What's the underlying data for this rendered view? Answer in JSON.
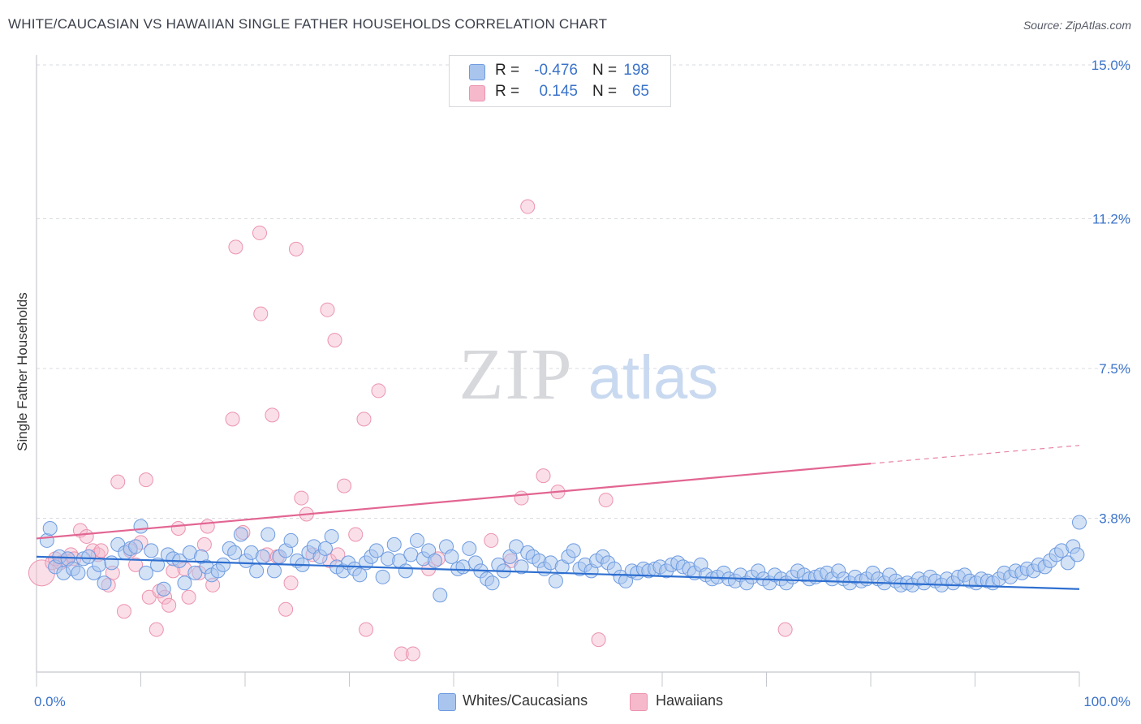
{
  "header": {
    "title": "WHITE/CAUCASIAN VS HAWAIIAN SINGLE FATHER HOUSEHOLDS CORRELATION CHART",
    "source": "Source: ZipAtlas.com"
  },
  "watermark": {
    "zip": "ZIP",
    "atlas": "atlas"
  },
  "legend": {
    "rows": [
      {
        "r_label": "R =",
        "r_value": "-0.476",
        "n_label": "N =",
        "n_value": "198"
      },
      {
        "r_label": "R =",
        "r_value": "0.145",
        "n_label": "N =",
        "n_value": "65"
      }
    ]
  },
  "bottom_legend": {
    "items": [
      {
        "label": "Whites/Caucasians"
      },
      {
        "label": "Hawaiians"
      }
    ]
  },
  "colors": {
    "blue_fill": "#a9c5ee",
    "blue_stroke": "#6d9be0",
    "blue_line": "#2e6fd0",
    "pink_fill": "#f5b9cb",
    "pink_stroke": "#ec93ae",
    "pink_line": "#e26592",
    "axis_text": "#3b73c9",
    "grid": "#d9dbe0"
  },
  "chart_data": {
    "type": "scatter",
    "title": "WHITE/CAUCASIAN VS HAWAIIAN SINGLE FATHER HOUSEHOLDS CORRELATION CHART",
    "xlabel": "",
    "ylabel": "Single Father Households",
    "xlim": [
      0,
      100
    ],
    "ylim": [
      0,
      15.0
    ],
    "x_tick_labels": [
      "0.0%",
      "100.0%"
    ],
    "y_ticks": [
      3.8,
      7.5,
      11.2,
      15.0
    ],
    "y_tick_labels": [
      "3.8%",
      "7.5%",
      "11.2%",
      "15.0%"
    ],
    "grid": true,
    "legend_position": "top-center",
    "series": [
      {
        "name": "Whites/Caucasians",
        "trend": {
          "x": [
            0,
            100
          ],
          "y": [
            2.85,
            2.05
          ]
        },
        "points": [
          [
            1,
            3.25
          ],
          [
            1.3,
            3.55
          ],
          [
            1.8,
            2.6
          ],
          [
            2.2,
            2.85
          ],
          [
            2.6,
            2.45
          ],
          [
            3,
            2.8
          ],
          [
            3.5,
            2.55
          ],
          [
            4,
            2.45
          ],
          [
            4.5,
            2.8
          ],
          [
            5,
            2.85
          ],
          [
            5.5,
            2.45
          ],
          [
            6,
            2.65
          ],
          [
            6.5,
            2.2
          ],
          [
            7.2,
            2.7
          ],
          [
            7.8,
            3.15
          ],
          [
            8.5,
            2.95
          ],
          [
            9,
            3.05
          ],
          [
            9.5,
            3.1
          ],
          [
            10,
            3.6
          ],
          [
            10.5,
            2.45
          ],
          [
            11,
            3.0
          ],
          [
            11.6,
            2.65
          ],
          [
            12.2,
            2.05
          ],
          [
            12.6,
            2.9
          ],
          [
            13.1,
            2.8
          ],
          [
            13.7,
            2.75
          ],
          [
            14.2,
            2.2
          ],
          [
            14.7,
            2.95
          ],
          [
            15.2,
            2.45
          ],
          [
            15.8,
            2.85
          ],
          [
            16.3,
            2.6
          ],
          [
            16.8,
            2.4
          ],
          [
            17.4,
            2.5
          ],
          [
            17.9,
            2.65
          ],
          [
            18.5,
            3.05
          ],
          [
            19,
            2.95
          ],
          [
            19.6,
            3.4
          ],
          [
            20.1,
            2.75
          ],
          [
            20.6,
            2.95
          ],
          [
            21.1,
            2.5
          ],
          [
            21.7,
            2.85
          ],
          [
            22.2,
            3.4
          ],
          [
            22.8,
            2.5
          ],
          [
            23.3,
            2.85
          ],
          [
            23.9,
            3.0
          ],
          [
            24.4,
            3.25
          ],
          [
            25,
            2.75
          ],
          [
            25.5,
            2.65
          ],
          [
            26.1,
            2.95
          ],
          [
            26.6,
            3.1
          ],
          [
            27.2,
            2.85
          ],
          [
            27.7,
            3.05
          ],
          [
            28.3,
            3.35
          ],
          [
            28.8,
            2.6
          ],
          [
            29.4,
            2.5
          ],
          [
            29.9,
            2.7
          ],
          [
            30.5,
            2.55
          ],
          [
            31,
            2.4
          ],
          [
            31.6,
            2.7
          ],
          [
            32.1,
            2.85
          ],
          [
            32.6,
            3.0
          ],
          [
            33.2,
            2.35
          ],
          [
            33.7,
            2.8
          ],
          [
            34.3,
            3.15
          ],
          [
            34.8,
            2.75
          ],
          [
            35.4,
            2.5
          ],
          [
            35.9,
            2.9
          ],
          [
            36.5,
            3.25
          ],
          [
            37.1,
            2.8
          ],
          [
            37.6,
            3.0
          ],
          [
            38.2,
            2.75
          ],
          [
            38.7,
            1.9
          ],
          [
            39.3,
            3.1
          ],
          [
            39.8,
            2.85
          ],
          [
            40.4,
            2.55
          ],
          [
            40.9,
            2.6
          ],
          [
            41.5,
            3.05
          ],
          [
            42.1,
            2.7
          ],
          [
            42.6,
            2.5
          ],
          [
            43.2,
            2.3
          ],
          [
            43.7,
            2.2
          ],
          [
            44.3,
            2.65
          ],
          [
            44.8,
            2.5
          ],
          [
            45.4,
            2.85
          ],
          [
            46,
            3.1
          ],
          [
            46.5,
            2.6
          ],
          [
            47.1,
            2.95
          ],
          [
            47.6,
            2.85
          ],
          [
            48.2,
            2.75
          ],
          [
            48.7,
            2.55
          ],
          [
            49.3,
            2.7
          ],
          [
            49.8,
            2.25
          ],
          [
            50.4,
            2.6
          ],
          [
            51,
            2.85
          ],
          [
            51.5,
            3.0
          ],
          [
            52.1,
            2.55
          ],
          [
            52.6,
            2.65
          ],
          [
            53.2,
            2.5
          ],
          [
            53.7,
            2.75
          ],
          [
            54.3,
            2.85
          ],
          [
            54.8,
            2.7
          ],
          [
            55.4,
            2.55
          ],
          [
            56,
            2.35
          ],
          [
            56.5,
            2.25
          ],
          [
            57.1,
            2.5
          ],
          [
            57.6,
            2.45
          ],
          [
            58.2,
            2.55
          ],
          [
            58.7,
            2.5
          ],
          [
            59.3,
            2.55
          ],
          [
            59.8,
            2.6
          ],
          [
            60.4,
            2.5
          ],
          [
            60.9,
            2.65
          ],
          [
            61.5,
            2.7
          ],
          [
            62,
            2.6
          ],
          [
            62.6,
            2.55
          ],
          [
            63.1,
            2.45
          ],
          [
            63.7,
            2.65
          ],
          [
            64.2,
            2.4
          ],
          [
            64.8,
            2.3
          ],
          [
            65.3,
            2.35
          ],
          [
            65.9,
            2.45
          ],
          [
            66.4,
            2.3
          ],
          [
            67,
            2.25
          ],
          [
            67.5,
            2.4
          ],
          [
            68.1,
            2.2
          ],
          [
            68.6,
            2.35
          ],
          [
            69.2,
            2.5
          ],
          [
            69.7,
            2.3
          ],
          [
            70.3,
            2.2
          ],
          [
            70.8,
            2.4
          ],
          [
            71.4,
            2.3
          ],
          [
            71.9,
            2.2
          ],
          [
            72.5,
            2.35
          ],
          [
            73,
            2.5
          ],
          [
            73.6,
            2.4
          ],
          [
            74.1,
            2.3
          ],
          [
            74.7,
            2.35
          ],
          [
            75.2,
            2.4
          ],
          [
            75.8,
            2.45
          ],
          [
            76.3,
            2.3
          ],
          [
            76.9,
            2.5
          ],
          [
            77.4,
            2.3
          ],
          [
            78,
            2.2
          ],
          [
            78.5,
            2.35
          ],
          [
            79.1,
            2.25
          ],
          [
            79.6,
            2.3
          ],
          [
            80.2,
            2.45
          ],
          [
            80.7,
            2.3
          ],
          [
            81.3,
            2.2
          ],
          [
            81.8,
            2.4
          ],
          [
            82.4,
            2.25
          ],
          [
            82.9,
            2.15
          ],
          [
            83.5,
            2.2
          ],
          [
            84,
            2.15
          ],
          [
            84.6,
            2.3
          ],
          [
            85.1,
            2.2
          ],
          [
            85.7,
            2.35
          ],
          [
            86.2,
            2.25
          ],
          [
            86.8,
            2.15
          ],
          [
            87.3,
            2.3
          ],
          [
            87.9,
            2.2
          ],
          [
            88.4,
            2.35
          ],
          [
            89,
            2.4
          ],
          [
            89.5,
            2.25
          ],
          [
            90.1,
            2.2
          ],
          [
            90.6,
            2.3
          ],
          [
            91.2,
            2.25
          ],
          [
            91.7,
            2.2
          ],
          [
            92.3,
            2.3
          ],
          [
            92.8,
            2.45
          ],
          [
            93.4,
            2.35
          ],
          [
            93.9,
            2.5
          ],
          [
            94.5,
            2.45
          ],
          [
            95,
            2.55
          ],
          [
            95.6,
            2.5
          ],
          [
            96.1,
            2.65
          ],
          [
            96.7,
            2.6
          ],
          [
            97.2,
            2.75
          ],
          [
            97.8,
            2.9
          ],
          [
            98.3,
            3.0
          ],
          [
            98.9,
            2.7
          ],
          [
            99.4,
            3.1
          ],
          [
            99.8,
            2.9
          ],
          [
            100,
            3.7
          ]
        ]
      },
      {
        "name": "Hawaiians",
        "trend": {
          "x": [
            0,
            80
          ],
          "y": [
            3.3,
            5.15
          ]
        },
        "trend_dashed": {
          "x": [
            80,
            100
          ],
          "y": [
            5.15,
            5.6
          ]
        },
        "points": [
          [
            0.5,
            2.45
          ],
          [
            1.5,
            2.7
          ],
          [
            1.8,
            2.8
          ],
          [
            2.3,
            2.7
          ],
          [
            2.8,
            2.75
          ],
          [
            3.3,
            2.9
          ],
          [
            3.6,
            2.8
          ],
          [
            4.2,
            3.5
          ],
          [
            4.8,
            3.35
          ],
          [
            5.4,
            3.0
          ],
          [
            5.9,
            2.9
          ],
          [
            6.2,
            3.0
          ],
          [
            6.9,
            2.15
          ],
          [
            7.3,
            2.45
          ],
          [
            7.8,
            4.7
          ],
          [
            8.4,
            1.5
          ],
          [
            9,
            3.0
          ],
          [
            9.5,
            2.65
          ],
          [
            10,
            3.2
          ],
          [
            10.5,
            4.75
          ],
          [
            10.8,
            1.85
          ],
          [
            11.5,
            1.05
          ],
          [
            11.8,
            2.0
          ],
          [
            12.3,
            1.85
          ],
          [
            12.7,
            1.65
          ],
          [
            13.1,
            2.5
          ],
          [
            13.6,
            3.55
          ],
          [
            14.2,
            2.55
          ],
          [
            14.6,
            1.85
          ],
          [
            15.6,
            2.45
          ],
          [
            16.1,
            3.15
          ],
          [
            16.4,
            3.6
          ],
          [
            16.9,
            2.15
          ],
          [
            18.8,
            6.25
          ],
          [
            19.1,
            10.5
          ],
          [
            19.8,
            3.45
          ],
          [
            21.4,
            10.85
          ],
          [
            21.5,
            8.85
          ],
          [
            22.1,
            2.9
          ],
          [
            22.6,
            6.35
          ],
          [
            23.1,
            2.85
          ],
          [
            23.9,
            1.55
          ],
          [
            24.4,
            2.2
          ],
          [
            24.9,
            10.45
          ],
          [
            25.4,
            4.3
          ],
          [
            25.9,
            3.9
          ],
          [
            26.5,
            2.9
          ],
          [
            27.9,
            8.95
          ],
          [
            28.1,
            2.75
          ],
          [
            28.6,
            8.2
          ],
          [
            28.9,
            2.9
          ],
          [
            29.5,
            4.6
          ],
          [
            30.6,
            3.4
          ],
          [
            31.4,
            6.25
          ],
          [
            31.6,
            1.05
          ],
          [
            32.8,
            6.95
          ],
          [
            35,
            0.45
          ],
          [
            36.1,
            0.45
          ],
          [
            37.6,
            2.55
          ],
          [
            38.5,
            2.8
          ],
          [
            43.6,
            3.25
          ],
          [
            45.5,
            2.75
          ],
          [
            46.5,
            4.3
          ],
          [
            47.1,
            11.5
          ],
          [
            48.6,
            4.85
          ],
          [
            50,
            4.45
          ],
          [
            53.9,
            0.8
          ],
          [
            54.6,
            4.25
          ],
          [
            71.8,
            1.05
          ]
        ]
      }
    ]
  }
}
